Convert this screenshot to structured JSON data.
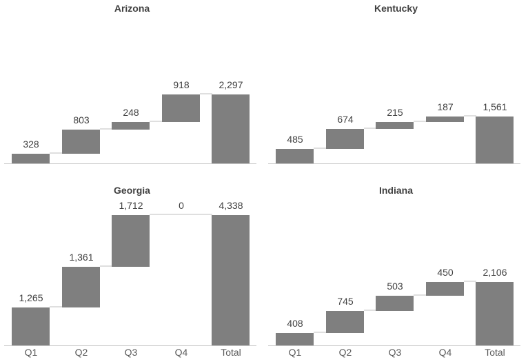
{
  "layout": {
    "grid": {
      "rows": 2,
      "cols": 2
    },
    "background": "#ffffff"
  },
  "style": {
    "bar_color": "#7f7f7f",
    "connector_color": "#dfdfdf",
    "axis_line_color": "#c9c9c9",
    "title_color": "#404040",
    "value_label_color": "#404040",
    "axis_label_color": "#595959"
  },
  "chart_data": [
    {
      "type": "bar",
      "subtype": "waterfall",
      "title": "Arizona",
      "categories": [
        "Q1",
        "Q2",
        "Q3",
        "Q4",
        "Total"
      ],
      "values": [
        328,
        803,
        248,
        918,
        2297
      ],
      "value_labels": [
        "328",
        "803",
        "248",
        "918",
        "2,297"
      ],
      "total_category": "Total",
      "x_axis_labels_visible": false,
      "y_axis_visible": false,
      "grid_lines": "off",
      "position": "top-left"
    },
    {
      "type": "bar",
      "subtype": "waterfall",
      "title": "Kentucky",
      "categories": [
        "Q1",
        "Q2",
        "Q3",
        "Q4",
        "Total"
      ],
      "values": [
        485,
        674,
        215,
        187,
        1561
      ],
      "value_labels": [
        "485",
        "674",
        "215",
        "187",
        "1,561"
      ],
      "total_category": "Total",
      "x_axis_labels_visible": false,
      "y_axis_visible": false,
      "grid_lines": "off",
      "position": "top-right"
    },
    {
      "type": "bar",
      "subtype": "waterfall",
      "title": "Georgia",
      "categories": [
        "Q1",
        "Q2",
        "Q3",
        "Q4",
        "Total"
      ],
      "values": [
        1265,
        1361,
        1712,
        0,
        4338
      ],
      "value_labels": [
        "1,265",
        "1,361",
        "1,712",
        "0",
        "4,338"
      ],
      "total_category": "Total",
      "x_axis_labels_visible": true,
      "y_axis_visible": false,
      "grid_lines": "off",
      "position": "bottom-left"
    },
    {
      "type": "bar",
      "subtype": "waterfall",
      "title": "Indiana",
      "categories": [
        "Q1",
        "Q2",
        "Q3",
        "Q4",
        "Total"
      ],
      "values": [
        408,
        745,
        503,
        450,
        2106
      ],
      "value_labels": [
        "408",
        "745",
        "503",
        "450",
        "2,106"
      ],
      "total_category": "Total",
      "x_axis_labels_visible": true,
      "y_axis_visible": false,
      "grid_lines": "off",
      "position": "bottom-right"
    }
  ]
}
